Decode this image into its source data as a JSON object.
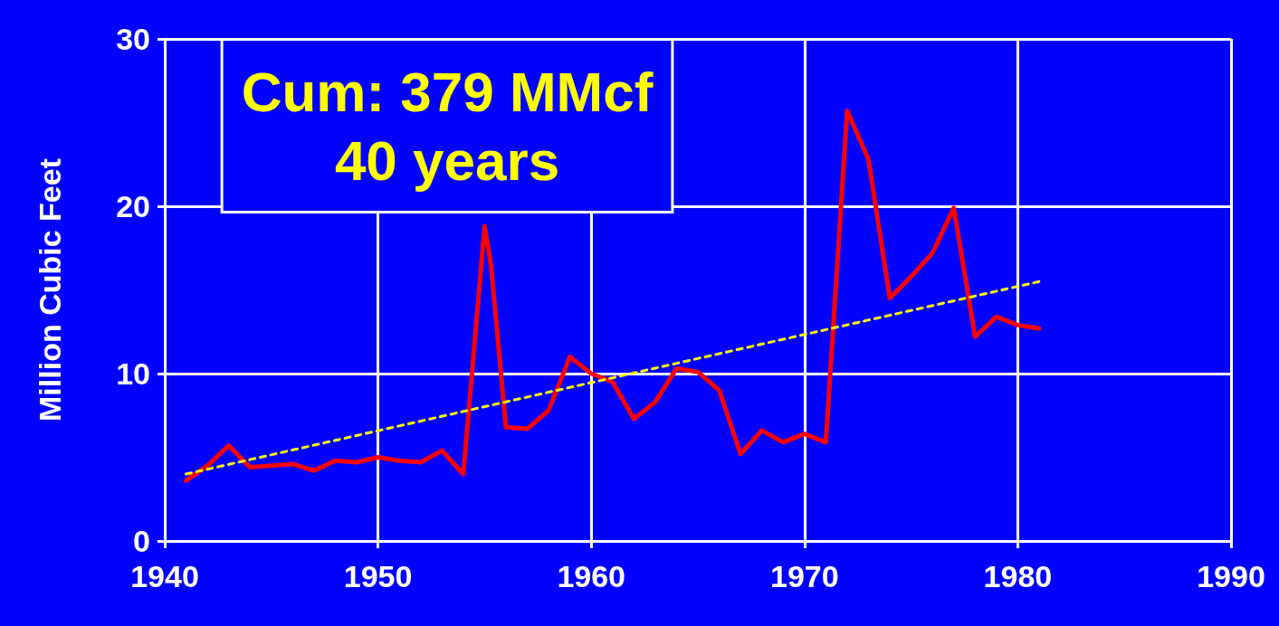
{
  "chart_data": {
    "type": "line",
    "ylabel": "Million Cubic Feet",
    "annotations": [
      "Cum: 379 MMcf",
      "40 years"
    ],
    "xlim": [
      1940,
      1990
    ],
    "xticks": [
      1940,
      1950,
      1960,
      1970,
      1980,
      1990
    ],
    "ylim": [
      0,
      30
    ],
    "yticks": [
      0,
      10,
      20,
      30
    ],
    "grid": true,
    "marker": "none",
    "series": [
      {
        "color": "#ff0000",
        "line_style": "solid",
        "x": [
          1941,
          1942,
          1943,
          1944,
          1945,
          1946,
          1947,
          1948,
          1949,
          1950,
          1951,
          1952,
          1953,
          1954,
          1955,
          1955.3,
          1956,
          1957,
          1958,
          1959,
          1960,
          1961,
          1962,
          1963,
          1964,
          1965,
          1966,
          1967,
          1968,
          1969,
          1970,
          1971,
          1972,
          1973,
          1974,
          1975,
          1976,
          1977,
          1978,
          1979,
          1980,
          1981
        ],
        "values": [
          3.6,
          4.5,
          5.7,
          4.4,
          4.5,
          4.6,
          4.2,
          4.8,
          4.7,
          5.0,
          4.8,
          4.7,
          5.4,
          4.0,
          18.8,
          16.5,
          6.8,
          6.7,
          7.8,
          11.0,
          10.0,
          9.5,
          7.3,
          8.3,
          10.3,
          10.1,
          9.0,
          5.2,
          6.6,
          5.9,
          6.4,
          5.9,
          25.7,
          22.8,
          14.5,
          15.8,
          17.2,
          19.9,
          12.2,
          13.4,
          12.9,
          12.7
        ]
      },
      {
        "color": "#ffff00",
        "line_style": "dashed",
        "x": [
          1941,
          1981
        ],
        "values": [
          4.0,
          15.5
        ]
      }
    ]
  }
}
